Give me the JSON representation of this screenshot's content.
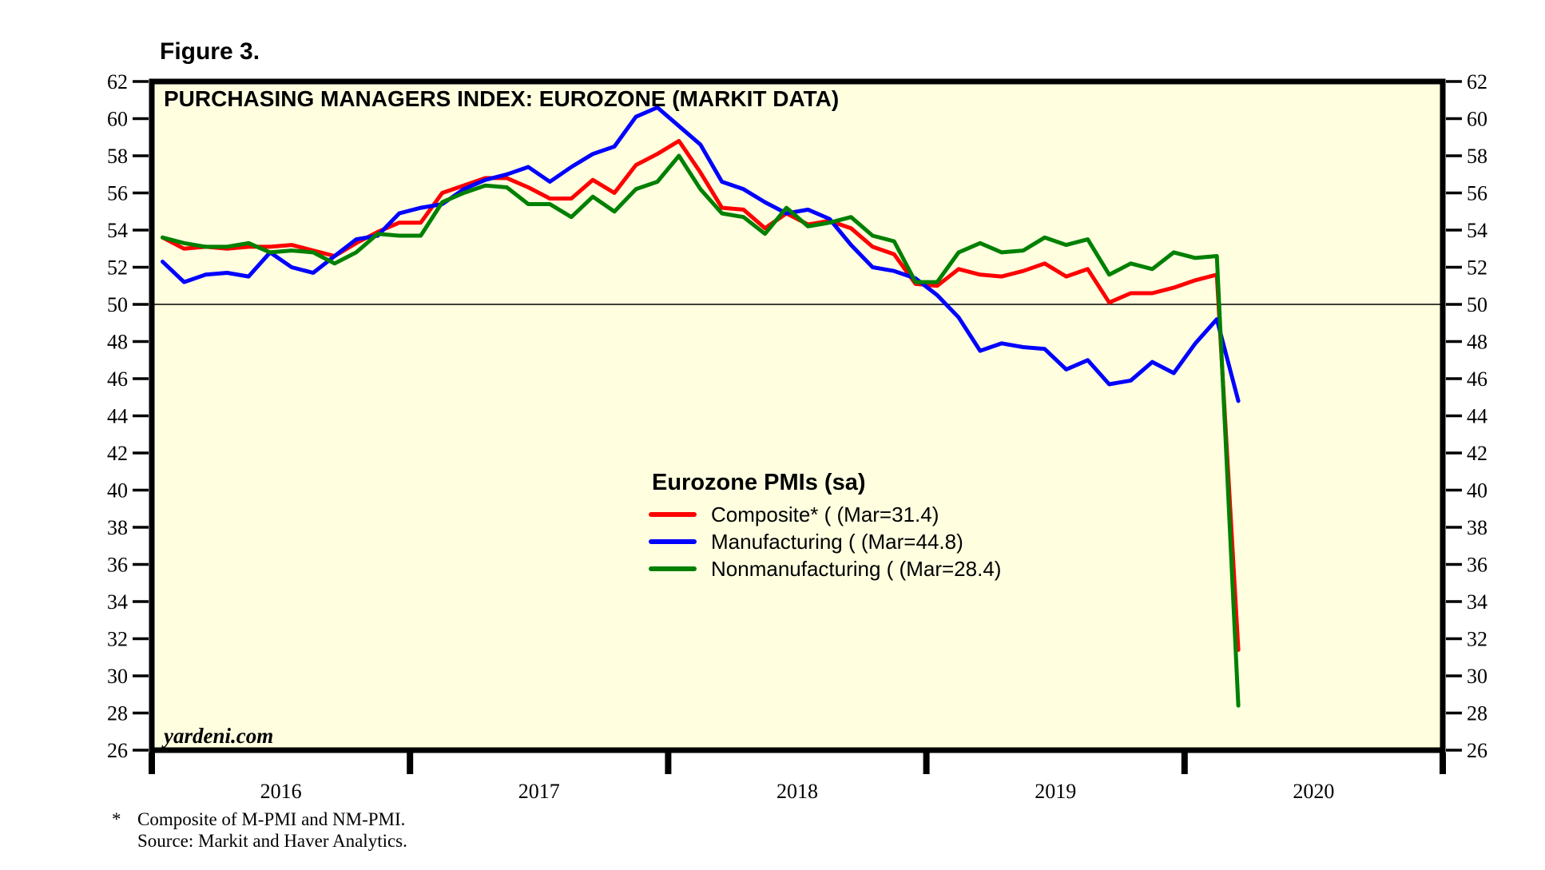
{
  "figure_label": "Figure 3.",
  "watermark": "yardeni.com",
  "footnote": {
    "star": "*",
    "line1": "Composite of M-PMI and NM-PMI.",
    "line2": "Source: Markit and Haver Analytics."
  },
  "legend": {
    "heading": "Eurozone PMIs (sa)",
    "items": [
      {
        "label": "Composite* ( (Mar=31.4)",
        "color": "#ff0000"
      },
      {
        "label": "Manufacturing ( (Mar=44.8)",
        "color": "#0000ff"
      },
      {
        "label": "Nonmanufacturing ( (Mar=28.4)",
        "color": "#008000"
      }
    ]
  },
  "chart_data": {
    "type": "line",
    "title": "PURCHASING MANAGERS INDEX: EUROZONE (MARKIT DATA)",
    "xlabel": "",
    "ylabel": "",
    "x_start": "2016-01",
    "x_end": "2020-03",
    "x_axis_years": [
      2016,
      2017,
      2018,
      2019,
      2020
    ],
    "x_total_months": 60,
    "ylim": [
      26,
      62
    ],
    "yticks": [
      26,
      28,
      30,
      32,
      34,
      36,
      38,
      40,
      42,
      44,
      46,
      48,
      50,
      52,
      54,
      56,
      58,
      60,
      62
    ],
    "ref_line": 50,
    "grid": false,
    "plot_bg": "#ffffe0",
    "frame_color": "#000000",
    "legend_position": "center-inside",
    "series": [
      {
        "name": "Composite",
        "color": "#ff0000",
        "values": [
          53.6,
          53.0,
          53.1,
          53.0,
          53.1,
          53.1,
          53.2,
          52.9,
          52.6,
          53.3,
          53.9,
          54.4,
          54.4,
          56.0,
          56.4,
          56.8,
          56.8,
          56.3,
          55.7,
          55.7,
          56.7,
          56.0,
          57.5,
          58.1,
          58.8,
          57.1,
          55.2,
          55.1,
          54.1,
          54.9,
          54.3,
          54.5,
          54.1,
          53.1,
          52.7,
          51.1,
          51.0,
          51.9,
          51.6,
          51.5,
          51.8,
          52.2,
          51.5,
          51.9,
          50.1,
          50.6,
          50.6,
          50.9,
          51.3,
          51.6,
          31.4
        ]
      },
      {
        "name": "Manufacturing",
        "color": "#0000ff",
        "values": [
          52.3,
          51.2,
          51.6,
          51.7,
          51.5,
          52.8,
          52.0,
          51.7,
          52.6,
          53.5,
          53.7,
          54.9,
          55.2,
          55.4,
          56.2,
          56.7,
          57.0,
          57.4,
          56.6,
          57.4,
          58.1,
          58.5,
          60.1,
          60.6,
          59.6,
          58.6,
          56.6,
          56.2,
          55.5,
          54.9,
          55.1,
          54.6,
          53.2,
          52.0,
          51.8,
          51.4,
          50.5,
          49.3,
          47.5,
          47.9,
          47.7,
          47.6,
          46.5,
          47.0,
          45.7,
          45.9,
          46.9,
          46.3,
          47.9,
          49.2,
          44.8
        ]
      },
      {
        "name": "Nonmanufacturing",
        "color": "#008000",
        "values": [
          53.6,
          53.3,
          53.1,
          53.1,
          53.3,
          52.8,
          52.9,
          52.8,
          52.2,
          52.8,
          53.8,
          53.7,
          53.7,
          55.5,
          56.0,
          56.4,
          56.3,
          55.4,
          55.4,
          54.7,
          55.8,
          55.0,
          56.2,
          56.6,
          58.0,
          56.2,
          54.9,
          54.7,
          53.8,
          55.2,
          54.2,
          54.4,
          54.7,
          53.7,
          53.4,
          51.2,
          51.2,
          52.8,
          53.3,
          52.8,
          52.9,
          53.6,
          53.2,
          53.5,
          51.6,
          52.2,
          51.9,
          52.8,
          52.5,
          52.6,
          28.4
        ]
      }
    ]
  }
}
